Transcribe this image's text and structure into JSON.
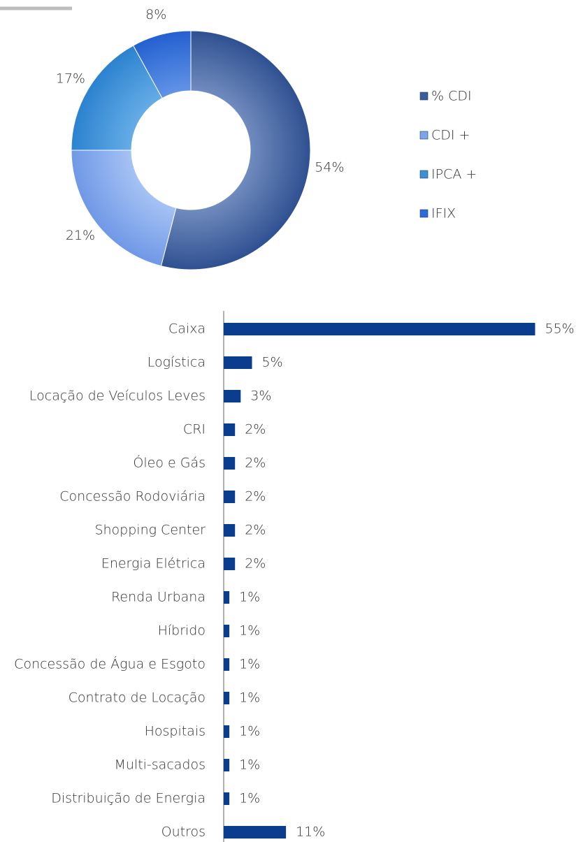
{
  "chart_data": [
    {
      "type": "donut",
      "categories": [
        "% CDI",
        "CDI +",
        "IPCA +",
        "IFIX"
      ],
      "values": [
        54,
        21,
        17,
        8
      ],
      "value_labels": [
        "54%",
        "21%",
        "17%",
        "8%"
      ],
      "colors": [
        "#3b5c9c",
        "#7ea5ea",
        "#3a8fd6",
        "#2e6bd6"
      ]
    },
    {
      "type": "hbar",
      "categories": [
        "Caixa",
        "Logística",
        "Locação de Veículos Leves",
        "CRI",
        "Óleo e Gás",
        "Concessão Rodoviária",
        "Shopping Center",
        "Energia Elétrica",
        "Renda Urbana",
        "Híbrido",
        "Concessão de Água e Esgoto",
        "Contrato de Locação",
        "Hospitais",
        "Multi-sacados",
        "Distribuição de Energia",
        "Outros"
      ],
      "values": [
        55,
        5,
        3,
        2,
        2,
        2,
        2,
        2,
        1,
        1,
        1,
        1,
        1,
        1,
        1,
        11
      ],
      "value_labels": [
        "55%",
        "5%",
        "3%",
        "2%",
        "2%",
        "2%",
        "2%",
        "2%",
        "1%",
        "1%",
        "1%",
        "1%",
        "1%",
        "1%",
        "1%",
        "11%"
      ],
      "color": "#0b3d8e"
    }
  ]
}
